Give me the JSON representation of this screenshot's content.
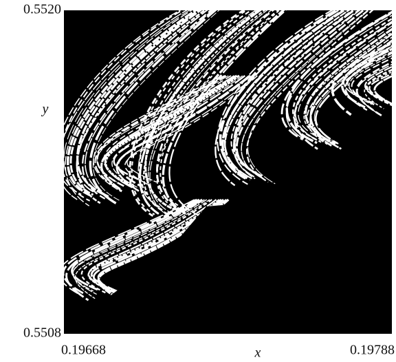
{
  "chart_data": {
    "type": "image",
    "xlabel": "x",
    "ylabel": "y",
    "xlim": [
      0.19668,
      0.19788
    ],
    "xticks": [
      0.19668,
      0.19788
    ],
    "ylim": [
      0.5508,
      0.552
    ],
    "yticks": [
      {
        "value": 0.5508,
        "label": "0.5508"
      },
      {
        "value": 0.552,
        "label": "0.5520"
      }
    ]
  }
}
